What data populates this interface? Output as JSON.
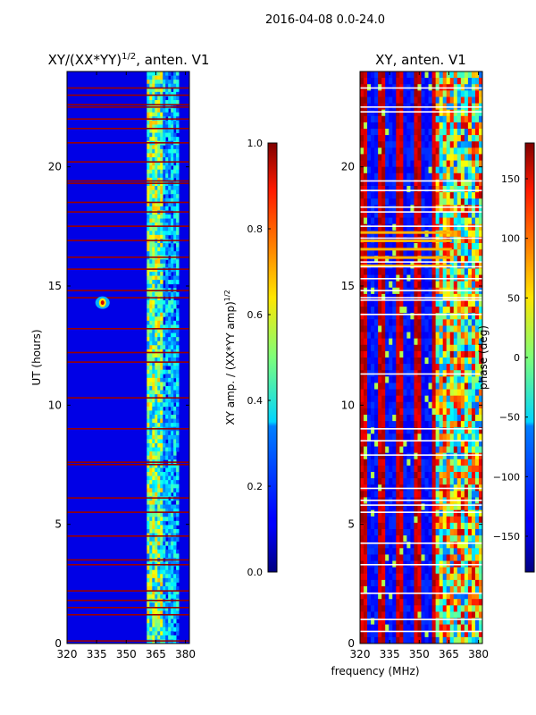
{
  "suptitle": "2016-04-08 0.0-24.0",
  "chart_data": [
    {
      "type": "heatmap",
      "title_prefix": "XY/(XX*YY)",
      "title_exp": "1/2",
      "title_suffix": ", anten. V1",
      "ylabel": "UT (hours)",
      "xlabel": "",
      "xlim": [
        320,
        382
      ],
      "ylim": [
        0,
        24
      ],
      "xticks": [
        320,
        335,
        350,
        365,
        380
      ],
      "yticks": [
        0,
        5,
        10,
        15,
        20
      ],
      "colorbar": {
        "label": "XY amp. / (XX*YY amp)",
        "label_exp": "1/2",
        "range": [
          0.0,
          1.0
        ],
        "ticks": [
          "0.0",
          "0.2",
          "0.4",
          "0.6",
          "0.8",
          "1.0"
        ],
        "colormap": "jet"
      },
      "red_rows_hours": [
        0.1,
        1.2,
        1.5,
        1.8,
        2.2,
        3.3,
        3.5,
        4.5,
        5.5,
        6.1,
        7.5,
        7.6,
        9.0,
        10.3,
        11.8,
        12.2,
        13.2,
        14.5,
        14.8,
        15.7,
        16.2,
        16.9,
        17.5,
        18.1,
        18.5,
        19.3,
        19.4,
        20.2,
        21.0,
        21.6,
        22.0,
        22.5,
        22.6,
        23.0,
        23.3
      ]
    },
    {
      "type": "heatmap",
      "title_prefix": "XY, anten. V1",
      "title_exp": "",
      "title_suffix": "",
      "ylabel": "",
      "xlabel": "frequency (MHz)",
      "xlim": [
        320,
        382
      ],
      "ylim": [
        0,
        24
      ],
      "xticks": [
        320,
        335,
        350,
        365,
        380
      ],
      "yticks": [
        0,
        5,
        10,
        15,
        20
      ],
      "colorbar": {
        "label": "phase (deg)",
        "label_exp": "",
        "range": [
          -180,
          180
        ],
        "ticks": [
          "−150",
          "−100",
          "−50",
          "0",
          "50",
          "100",
          "150"
        ],
        "colormap": "jet"
      },
      "white_rows_hours": [
        0.5,
        1.0,
        2.1,
        3.3,
        4.2,
        5.5,
        5.8,
        6.0,
        6.5,
        7.9,
        8.5,
        9.0,
        11.3,
        13.8,
        14.4,
        14.5,
        14.8,
        15.3,
        15.8,
        16.0,
        17.0,
        17.5,
        18.1,
        18.3,
        19.0,
        19.4,
        22.3,
        22.5,
        23.3
      ]
    }
  ]
}
